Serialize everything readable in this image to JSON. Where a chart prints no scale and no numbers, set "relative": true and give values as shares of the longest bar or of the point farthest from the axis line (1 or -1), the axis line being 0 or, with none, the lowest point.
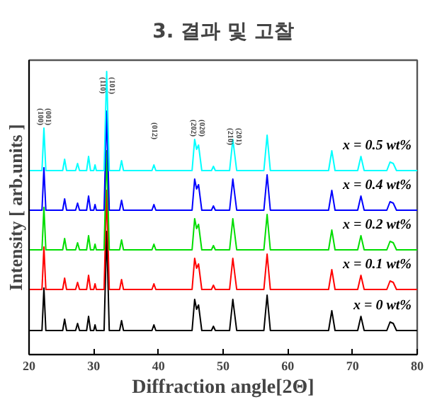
{
  "chart_data": {
    "type": "line",
    "title": "3. 결과 및 고찰",
    "xlabel": "Diffraction angle[2Θ]",
    "ylabel": "Intensity [ arb.units ]",
    "relative": true,
    "xlim": [
      20,
      80
    ],
    "xticks": [
      20,
      30,
      40,
      50,
      60,
      70,
      80
    ],
    "tick_labels": "x",
    "grid": false,
    "legend": false,
    "marker": "none",
    "line_style": "solid",
    "x": [
      20,
      22.0,
      22.3,
      22.6,
      25.2,
      25.5,
      25.8,
      27.2,
      27.5,
      27.8,
      28.9,
      29.2,
      29.5,
      30.0,
      30.2,
      30.4,
      31.6,
      32.0,
      32.4,
      34.0,
      34.3,
      34.6,
      39.0,
      39.3,
      39.6,
      45.2,
      45.6,
      45.9,
      46.2,
      46.7,
      48.2,
      48.5,
      48.8,
      51.0,
      51.5,
      52.1,
      56.3,
      56.8,
      57.3,
      66.3,
      66.8,
      67.3,
      70.8,
      71.3,
      71.8,
      75.3,
      75.8,
      76.3,
      76.8,
      80
    ],
    "series": [
      {
        "name": "x = 0 wt%",
        "color": "#000000",
        "values": [
          0.085,
          0.085,
          0.235,
          0.085,
          0.085,
          0.125,
          0.085,
          0.085,
          0.11,
          0.085,
          0.085,
          0.135,
          0.085,
          0.085,
          0.105,
          0.085,
          0.085,
          0.435,
          0.085,
          0.085,
          0.12,
          0.085,
          0.085,
          0.105,
          0.085,
          0.085,
          0.195,
          0.16,
          0.175,
          0.085,
          0.085,
          0.1,
          0.085,
          0.085,
          0.195,
          0.085,
          0.085,
          0.21,
          0.085,
          0.085,
          0.155,
          0.085,
          0.085,
          0.135,
          0.085,
          0.085,
          0.115,
          0.11,
          0.085,
          0.085
        ]
      },
      {
        "name": "x = 0.1 wt%",
        "color": "#ff0000",
        "values": [
          0.23,
          0.23,
          0.38,
          0.23,
          0.23,
          0.27,
          0.23,
          0.23,
          0.255,
          0.23,
          0.23,
          0.28,
          0.23,
          0.23,
          0.25,
          0.23,
          0.23,
          0.58,
          0.23,
          0.23,
          0.265,
          0.23,
          0.23,
          0.25,
          0.23,
          0.23,
          0.34,
          0.305,
          0.32,
          0.23,
          0.23,
          0.245,
          0.23,
          0.23,
          0.34,
          0.23,
          0.23,
          0.355,
          0.23,
          0.23,
          0.3,
          0.23,
          0.23,
          0.28,
          0.23,
          0.23,
          0.26,
          0.255,
          0.23,
          0.23
        ]
      },
      {
        "name": "x = 0.2 wt%",
        "color": "#00dd00",
        "values": [
          0.37,
          0.37,
          0.52,
          0.37,
          0.37,
          0.41,
          0.37,
          0.37,
          0.395,
          0.37,
          0.37,
          0.42,
          0.37,
          0.37,
          0.39,
          0.37,
          0.37,
          0.72,
          0.37,
          0.37,
          0.405,
          0.37,
          0.37,
          0.39,
          0.37,
          0.37,
          0.48,
          0.445,
          0.46,
          0.37,
          0.37,
          0.385,
          0.37,
          0.37,
          0.48,
          0.37,
          0.37,
          0.495,
          0.37,
          0.37,
          0.44,
          0.37,
          0.37,
          0.42,
          0.37,
          0.37,
          0.4,
          0.395,
          0.37,
          0.37
        ]
      },
      {
        "name": "x = 0.4 wt%",
        "color": "#0000ff",
        "values": [
          0.51,
          0.51,
          0.66,
          0.51,
          0.51,
          0.55,
          0.51,
          0.51,
          0.535,
          0.51,
          0.51,
          0.56,
          0.51,
          0.51,
          0.53,
          0.51,
          0.51,
          0.86,
          0.51,
          0.51,
          0.545,
          0.51,
          0.51,
          0.53,
          0.51,
          0.51,
          0.62,
          0.585,
          0.6,
          0.51,
          0.51,
          0.525,
          0.51,
          0.51,
          0.62,
          0.51,
          0.51,
          0.635,
          0.51,
          0.51,
          0.58,
          0.51,
          0.51,
          0.56,
          0.51,
          0.51,
          0.54,
          0.535,
          0.51,
          0.51
        ]
      },
      {
        "name": "x = 0.5 wt%",
        "color": "#00ffff",
        "values": [
          0.65,
          0.65,
          0.8,
          0.65,
          0.65,
          0.69,
          0.65,
          0.65,
          0.675,
          0.65,
          0.65,
          0.7,
          0.65,
          0.65,
          0.67,
          0.65,
          0.65,
          1.0,
          0.65,
          0.65,
          0.685,
          0.65,
          0.65,
          0.67,
          0.65,
          0.65,
          0.76,
          0.725,
          0.74,
          0.65,
          0.65,
          0.665,
          0.65,
          0.65,
          0.76,
          0.65,
          0.65,
          0.775,
          0.65,
          0.65,
          0.72,
          0.65,
          0.65,
          0.7,
          0.65,
          0.65,
          0.68,
          0.675,
          0.65,
          0.65
        ]
      }
    ],
    "annotations": [
      "(100)",
      "(001)",
      "(110)",
      "(101)",
      "(012)",
      "(202)",
      "(020)",
      "(210)",
      "(201)"
    ]
  }
}
